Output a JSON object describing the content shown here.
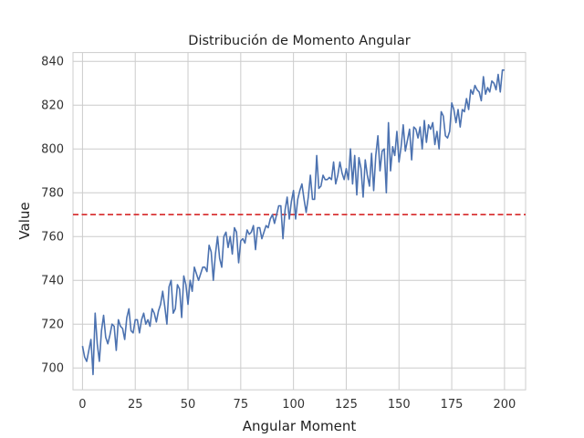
{
  "chart_data": {
    "type": "line",
    "title": "Distribución de Momento Angular",
    "xlabel": "Angular Moment",
    "ylabel": "Value",
    "xlim": [
      -4.5,
      210
    ],
    "ylim": [
      690,
      844
    ],
    "xticks": [
      0,
      25,
      50,
      75,
      100,
      125,
      150,
      175,
      200
    ],
    "yticks": [
      700,
      720,
      740,
      760,
      780,
      800,
      820,
      840
    ],
    "grid": true,
    "legend": "none",
    "series": [
      {
        "color": "#4c72b0",
        "x_start": 0,
        "x_step": 1,
        "values": [
          710,
          705,
          703,
          708,
          713,
          697,
          725,
          711,
          703,
          717,
          724,
          714,
          711,
          715,
          720,
          719,
          708,
          722,
          719,
          718,
          713,
          723,
          727,
          717,
          716,
          722,
          722,
          716,
          722,
          725,
          720,
          722,
          719,
          727,
          725,
          721,
          726,
          729,
          735,
          728,
          720,
          737,
          740,
          725,
          727,
          738,
          736,
          723,
          742,
          738,
          729,
          740,
          735,
          746,
          743,
          740,
          743,
          746,
          746,
          744,
          756,
          753,
          740,
          752,
          760,
          750,
          746,
          760,
          762,
          755,
          760,
          752,
          764,
          762,
          748,
          758,
          759,
          757,
          763,
          761,
          762,
          765,
          754,
          764,
          764,
          759,
          762,
          765,
          764,
          768,
          770,
          766,
          770,
          774,
          774,
          759,
          772,
          778,
          768,
          776,
          781,
          768,
          777,
          781,
          784,
          777,
          771,
          778,
          788,
          777,
          777,
          797,
          782,
          783,
          788,
          786,
          786,
          787,
          786,
          794,
          784,
          788,
          794,
          789,
          786,
          791,
          786,
          800,
          784,
          797,
          779,
          796,
          791,
          778,
          795,
          788,
          783,
          798,
          781,
          797,
          806,
          790,
          799,
          800,
          780,
          812,
          790,
          801,
          797,
          808,
          794,
          801,
          811,
          799,
          804,
          809,
          795,
          810,
          809,
          805,
          810,
          800,
          813,
          803,
          811,
          809,
          812,
          802,
          808,
          800,
          817,
          815,
          806,
          805,
          808,
          821,
          818,
          812,
          818,
          810,
          818,
          817,
          823,
          818,
          827,
          825,
          829,
          827,
          826,
          822,
          833,
          825,
          828,
          826,
          831,
          830,
          827,
          834,
          826,
          836,
          836
        ]
      }
    ],
    "reference_line": {
      "y": 770,
      "color": "#d62728",
      "style": "dashed"
    }
  }
}
